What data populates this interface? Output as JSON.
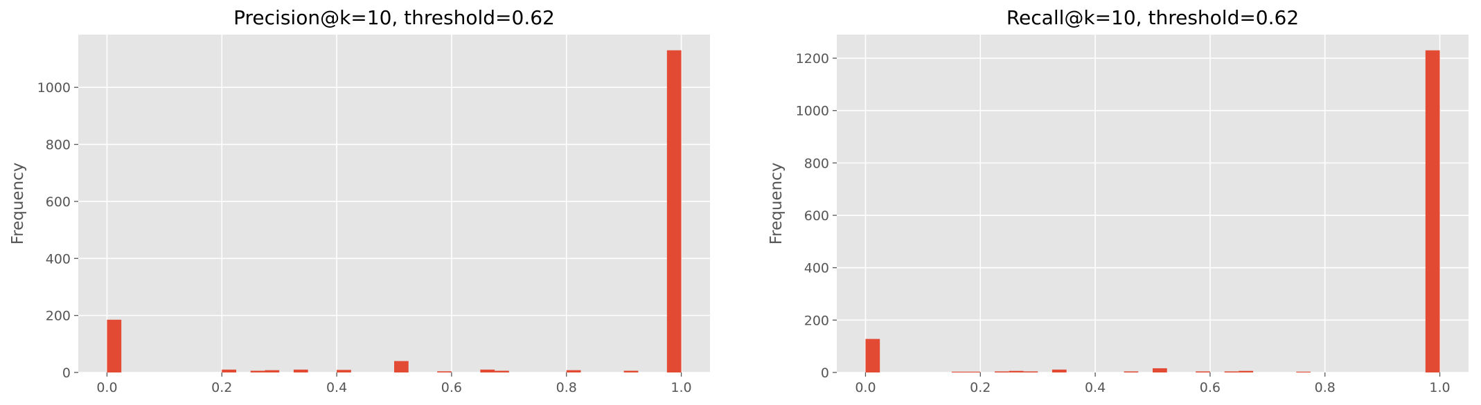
{
  "chart_data": [
    {
      "type": "bar",
      "subtype": "histogram",
      "title": "Precision@k=10, threshold=0.62",
      "xlabel": "",
      "ylabel": "Frequency",
      "xlim": [
        -0.05,
        1.05
      ],
      "ylim": [
        0,
        1185
      ],
      "xticks": [
        0.0,
        0.2,
        0.4,
        0.6,
        0.8,
        1.0
      ],
      "xtick_labels": [
        "0.0",
        "0.2",
        "0.4",
        "0.6",
        "0.8",
        "1.0"
      ],
      "yticks": [
        0,
        200,
        400,
        600,
        800,
        1000
      ],
      "ytick_labels": [
        "0",
        "200",
        "400",
        "600",
        "800",
        "1000"
      ],
      "grid": true,
      "bar_color": "#E24A33",
      "background_color": "#E5E5E5",
      "bin_width": 0.025,
      "bins_start": [
        0.0,
        0.2,
        0.25,
        0.275,
        0.325,
        0.4,
        0.5,
        0.575,
        0.65,
        0.675,
        0.8,
        0.9,
        0.975
      ],
      "values": [
        185,
        10,
        6,
        8,
        10,
        9,
        40,
        4,
        10,
        6,
        8,
        6,
        1130
      ]
    },
    {
      "type": "bar",
      "subtype": "histogram",
      "title": "Recall@k=10, threshold=0.62",
      "xlabel": "",
      "ylabel": "Frequency",
      "xlim": [
        -0.05,
        1.05
      ],
      "ylim": [
        0,
        1290
      ],
      "xticks": [
        0.0,
        0.2,
        0.4,
        0.6,
        0.8,
        1.0
      ],
      "xtick_labels": [
        "0.0",
        "0.2",
        "0.4",
        "0.6",
        "0.8",
        "1.0"
      ],
      "yticks": [
        0,
        200,
        400,
        600,
        800,
        1000,
        1200
      ],
      "ytick_labels": [
        "0",
        "200",
        "400",
        "600",
        "800",
        "1000",
        "1200"
      ],
      "grid": true,
      "bar_color": "#E24A33",
      "background_color": "#E5E5E5",
      "bin_width": 0.025,
      "bins_start": [
        0.0,
        0.15,
        0.175,
        0.225,
        0.25,
        0.275,
        0.325,
        0.45,
        0.5,
        0.575,
        0.625,
        0.65,
        0.75,
        0.975
      ],
      "values": [
        128,
        3,
        3,
        4,
        6,
        4,
        11,
        4,
        16,
        4,
        4,
        6,
        3,
        1230
      ]
    }
  ]
}
